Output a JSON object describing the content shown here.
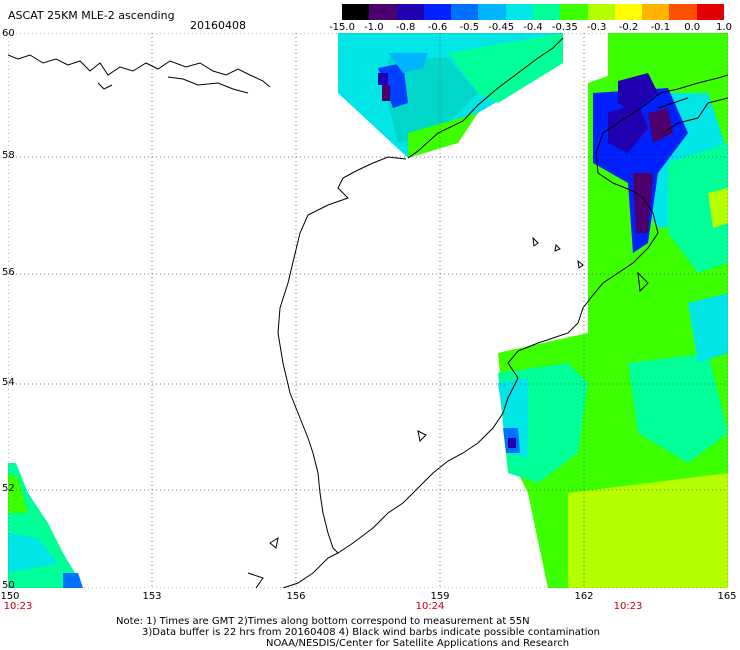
{
  "header": {
    "title": "ASCAT 25KM MLE-2 ascending",
    "date": "20160408"
  },
  "color_scale": {
    "labels": [
      "-15.0",
      "-1.0",
      "-0.8",
      "-0.6",
      "-0.5",
      "-0.45",
      "-0.4",
      "-0.35",
      "-0.3",
      "-0.2",
      "-0.1",
      "0.0",
      "1.0"
    ],
    "colors": [
      "#000000",
      "#4b006e",
      "#2000b0",
      "#0020ff",
      "#0070ff",
      "#00b4ff",
      "#00e6e6",
      "#00ff96",
      "#3cff00",
      "#b4ff00",
      "#ffff00",
      "#ffb400",
      "#ff5000",
      "#e00000"
    ]
  },
  "map": {
    "lat_labels": [
      "60",
      "58",
      "56",
      "54",
      "52",
      "50"
    ],
    "lon_labels": [
      "150",
      "153",
      "156",
      "159",
      "162",
      "165"
    ],
    "time_labels": [
      "10:23",
      "10:24",
      "10:23"
    ],
    "grid_style": "dotted",
    "land_color": "#ffffff",
    "coastline_color": "#000000"
  },
  "footer": {
    "line1": "Note: 1) Times are GMT 2)Times along bottom correspond to measurement at 55N",
    "line2": "3)Data buffer is 22 hrs from 20160408 4) Black wind barbs indicate possible contamination",
    "line3": "NOAA/NESDIS/Center for Satellite Applications and Research"
  }
}
